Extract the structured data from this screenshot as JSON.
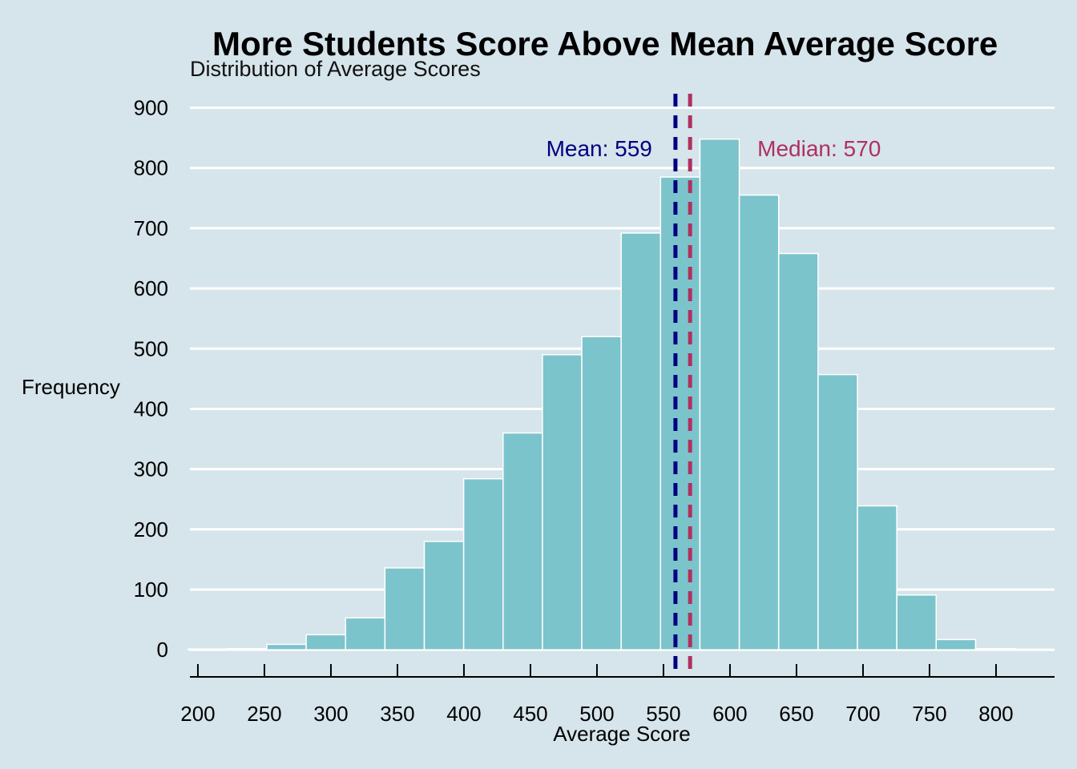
{
  "chart_data": {
    "type": "histogram",
    "title": "More Students Score Above Mean Average Score",
    "subtitle": "Distribution of Average Scores",
    "xlabel": "Average Score",
    "ylabel": "Frequency",
    "xlim": [
      194,
      844
    ],
    "ylim": [
      -45,
      930
    ],
    "x_ticks": [
      200,
      250,
      300,
      350,
      400,
      450,
      500,
      550,
      600,
      650,
      700,
      750,
      800
    ],
    "y_ticks": [
      0,
      100,
      200,
      300,
      400,
      500,
      600,
      700,
      800,
      900
    ],
    "bin_width": 29.6,
    "bin_starts": [
      192.6,
      222.2,
      251.8,
      281.4,
      311.0,
      340.6,
      370.2,
      399.8,
      429.4,
      459.0,
      488.6,
      518.2,
      547.8,
      577.4,
      607.0,
      636.6,
      666.2,
      695.8,
      725.4,
      755.0,
      784.6
    ],
    "values": [
      0,
      2,
      9,
      25,
      53,
      136,
      180,
      284,
      360,
      490,
      520,
      692,
      785,
      848,
      755,
      658,
      457,
      239,
      91,
      17,
      2
    ],
    "bar_color": "#7cc4cc",
    "bar_edge_color": "#ffffff",
    "gridlines": "horizontal",
    "lines": [
      {
        "name": "mean",
        "x": 559,
        "label": "Mean: 559",
        "color": "#000080",
        "style": "dashed"
      },
      {
        "name": "median",
        "x": 570,
        "label": "Median: 570",
        "color": "#b03060",
        "style": "dashed"
      }
    ],
    "legend": "none"
  }
}
